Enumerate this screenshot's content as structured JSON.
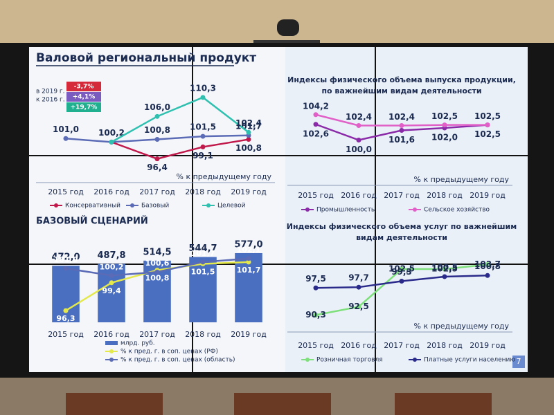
{
  "slide_title": "Валовой региональный продукт",
  "page_number": "7",
  "chart_data": [
    {
      "type": "line",
      "categories": [
        "2015 год",
        "2016 год",
        "2017 год",
        "2018 год",
        "2019 год"
      ],
      "axis_label": "% к предыдущему году",
      "ylim": [
        94,
        112
      ],
      "summary": {
        "label": [
          "в 2019 г.",
          "к 2016 г."
        ],
        "items": [
          {
            "text": "-3,7%",
            "color": "#d42a3a"
          },
          {
            "text": "+4,1%",
            "color": "#7a5cc0"
          },
          {
            "text": "+19,7%",
            "color": "#20b090"
          }
        ]
      },
      "series": [
        {
          "name": "Консервативный",
          "color": "#c0184a",
          "values": [
            null,
            100.2,
            96.4,
            99.1,
            100.8
          ],
          "value_labels": [
            null,
            null,
            "96,4",
            "99,1",
            "100,8"
          ]
        },
        {
          "name": "Базовый",
          "color": "#5b6bb5",
          "values": [
            101.0,
            100.2,
            100.8,
            101.5,
            101.7
          ],
          "value_labels": [
            "101,0",
            "100,2",
            "100,8",
            "101,5",
            "101,7"
          ]
        },
        {
          "name": "Целевой",
          "color": "#2fc0b0",
          "values": [
            null,
            100.2,
            106.0,
            110.3,
            102.4
          ],
          "value_labels": [
            null,
            null,
            "106,0",
            "110,3",
            "102,4"
          ]
        }
      ]
    },
    {
      "type": "line",
      "title": [
        "Индексы физического объема выпуска продукции,",
        "по важнейшим видам деятельности"
      ],
      "categories": [
        "2015 год",
        "2016 год",
        "2017 год",
        "2018 год",
        "2019 год"
      ],
      "axis_label": "% к предыдущему году",
      "ylim": [
        98,
        106
      ],
      "series": [
        {
          "name": "Промышленность",
          "color": "#8a2aa8",
          "values": [
            102.6,
            100.0,
            101.6,
            102.0,
            102.5
          ],
          "value_labels": [
            "102,6",
            "100,0",
            "101,6",
            "102,0",
            "102,5"
          ]
        },
        {
          "name": "Сельское хозяйство",
          "color": "#e060c8",
          "values": [
            104.2,
            102.4,
            102.4,
            102.5,
            102.5
          ],
          "value_labels": [
            "104,2",
            "102,4",
            "102,4",
            "102,5",
            "102,5"
          ]
        }
      ]
    },
    {
      "type": "bar",
      "title": "БАЗОВЫЙ СЦЕНАРИЙ",
      "categories": [
        "2015 год",
        "2016 год",
        "2017 год",
        "2018 год",
        "2019 год"
      ],
      "ylim": [
        0,
        600
      ],
      "y2lim": [
        95,
        103
      ],
      "series": [
        {
          "name": "млрд. руб.",
          "color": "#4a6fc0",
          "values": [
            472.0,
            487.8,
            514.5,
            544.7,
            577.0
          ],
          "value_labels": [
            "472,0",
            "487,8",
            "514,5",
            "544,7",
            "577,0"
          ]
        },
        {
          "name": "% к пред. г. в соп. ценах (РФ)",
          "color": "#e4e84a",
          "axis": "y2",
          "values": [
            96.3,
            99.4,
            100.8,
            101.5,
            101.7
          ],
          "value_labels": [
            "96,3",
            "99,4",
            "100,8",
            "101,5",
            "101,7"
          ]
        },
        {
          "name": "% к пред. г. в соп. ценах (область)",
          "color": "#5b6bb5",
          "axis": "y2",
          "values": [
            101.0,
            100.2,
            100.6,
            101.7,
            102.1
          ],
          "value_labels": [
            "101,0",
            "100,2",
            "100,6",
            "101,7",
            "102,1"
          ]
        }
      ]
    },
    {
      "type": "line",
      "title": [
        "Индексы физического объема услуг по важнейшим",
        "видам деятельности"
      ],
      "categories": [
        "2015 год",
        "2016 год",
        "2017 год",
        "2018 год",
        "2019 год"
      ],
      "axis_label": "% к предыдущему году",
      "ylim": [
        88,
        106
      ],
      "series": [
        {
          "name": "Розничная торговля",
          "color": "#7ee07a",
          "values": [
            90.3,
            92.5,
            102.5,
            102.5,
            103.7
          ],
          "value_labels": [
            "90,3",
            "92,5",
            "102,5",
            "102,5",
            "103,7"
          ]
        },
        {
          "name": "Платные услуги населению",
          "color": "#2a2a8a",
          "values": [
            97.5,
            97.7,
            99.3,
            100.5,
            100.8
          ],
          "value_labels": [
            "97,5",
            "97,7",
            "99,3",
            "100,5",
            "100,8"
          ]
        }
      ]
    }
  ]
}
